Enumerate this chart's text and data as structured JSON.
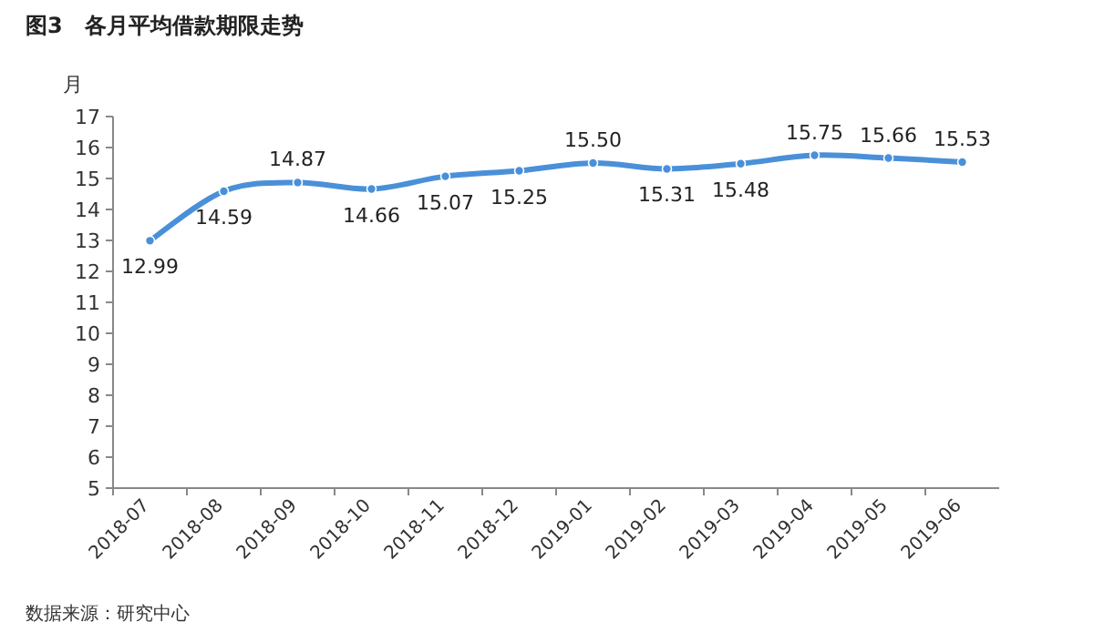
{
  "chart_data": {
    "type": "line",
    "title": "图3　各月平均借款期限走势",
    "ylabel": "月",
    "categories": [
      "2018-07",
      "2018-08",
      "2018-09",
      "2018-10",
      "2018-11",
      "2018-12",
      "2019-01",
      "2019-02",
      "2019-03",
      "2019-04",
      "2019-05",
      "2019-06"
    ],
    "series": [
      {
        "color": "#4a90d9",
        "values": [
          12.99,
          14.59,
          14.87,
          14.66,
          15.07,
          15.25,
          15.5,
          15.31,
          15.48,
          15.75,
          15.66,
          15.53
        ],
        "value_labels": [
          "12.99",
          "14.59",
          "14.87",
          "14.66",
          "15.07",
          "15.25",
          "15.50",
          "15.31",
          "15.48",
          "15.75",
          "15.66",
          "15.53"
        ]
      }
    ],
    "ylim": [
      5,
      17
    ],
    "yticks": [
      5,
      6,
      7,
      8,
      9,
      10,
      11,
      12,
      13,
      14,
      15,
      16,
      17
    ],
    "marker": "circle",
    "line_style": "solid",
    "grid": false,
    "annotations": [
      "数据来源：研究中心"
    ]
  }
}
